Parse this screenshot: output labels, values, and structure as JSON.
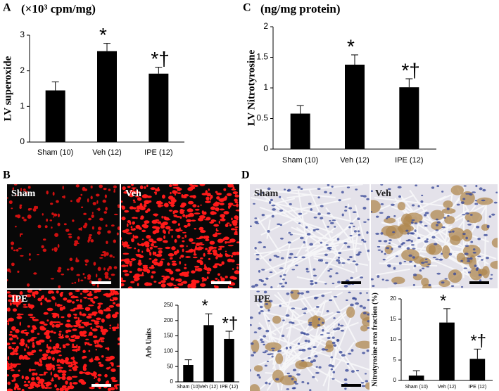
{
  "chart_data": [
    {
      "type": "bar",
      "label": "A",
      "title": "(×10³ cpm/mg)",
      "y_label": "LV superoxide",
      "categories": [
        "Sham (10)",
        "Veh (12)",
        "IPE (12)"
      ],
      "values": [
        1.45,
        2.55,
        1.92
      ],
      "errors": [
        0.24,
        0.22,
        0.18
      ],
      "color": "#000000",
      "ylim": [
        0,
        3
      ],
      "yticks": [
        0,
        1,
        2,
        3
      ],
      "annotations": [
        {
          "x": "Veh (12)",
          "text": "*"
        },
        {
          "x": "IPE (12)",
          "text": "*†"
        }
      ]
    },
    {
      "type": "bar",
      "label": "C",
      "title": "(ng/mg protein)",
      "y_label": "LV Nitrotyrosine",
      "categories": [
        "Sham (10)",
        "Veh (12)",
        "IPE (12)"
      ],
      "values": [
        0.58,
        1.38,
        1.01
      ],
      "errors": [
        0.13,
        0.16,
        0.14
      ],
      "color": "#000000",
      "ylim": [
        0,
        2
      ],
      "yticks": [
        0,
        0.5,
        1,
        1.5,
        2
      ],
      "annotations": [
        {
          "x": "Veh (12)",
          "text": "*"
        },
        {
          "x": "IPE (12)",
          "text": "*†"
        }
      ]
    },
    {
      "type": "bar",
      "label": "B",
      "y_label": "Arb Units",
      "image_labels": [
        "Sham",
        "Veh",
        "IPE"
      ],
      "categories": [
        "Sham (10)",
        "Veh (12)",
        "IPE (12)"
      ],
      "values": [
        55,
        185,
        140
      ],
      "errors": [
        17,
        37,
        25
      ],
      "color": "#000000",
      "ylim": [
        0,
        250
      ],
      "yticks": [
        0,
        50,
        100,
        150,
        200,
        250
      ],
      "annotations": [
        {
          "x": "Veh (12)",
          "text": "*"
        },
        {
          "x": "IPE (12)",
          "text": "*†"
        }
      ]
    },
    {
      "type": "bar",
      "label": "D",
      "y_label": "Nitrotyrosine area fraction (%)",
      "image_labels": [
        "Sham",
        "Veh",
        "IPE"
      ],
      "categories": [
        "Sham (10)",
        "Veh (12)",
        "IPE (12)"
      ],
      "values": [
        1.2,
        14.2,
        5.3
      ],
      "errors": [
        1.2,
        3.4,
        2.4
      ],
      "color": "#000000",
      "ylim": [
        0,
        20
      ],
      "yticks": [
        0,
        5,
        10,
        15,
        20
      ],
      "annotations": [
        {
          "x": "Veh (12)",
          "text": "*"
        },
        {
          "x": "IPE (12)",
          "text": "*†"
        }
      ]
    }
  ]
}
